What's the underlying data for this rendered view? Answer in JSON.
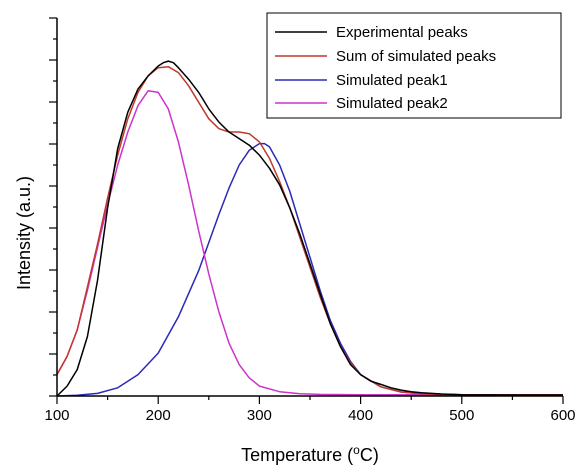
{
  "chart_data": {
    "type": "line",
    "title": "",
    "xlabel_main": "Temperature (",
    "xlabel_sup": "o",
    "xlabel_end": "C)",
    "ylabel": "Intensity (a.u.)",
    "xlim": [
      100,
      600
    ],
    "ylim": [
      0,
      100
    ],
    "x_ticks": [
      100,
      200,
      300,
      400,
      500,
      600
    ],
    "y_tick_labels_shown": false,
    "grid": false,
    "legend_position": "top-right",
    "series": [
      {
        "name": "Experimental peaks",
        "color": "#000000",
        "x": [
          100,
          110,
          120,
          130,
          140,
          150,
          160,
          170,
          180,
          190,
          200,
          205,
          210,
          215,
          220,
          230,
          240,
          250,
          260,
          270,
          280,
          290,
          300,
          310,
          320,
          330,
          340,
          350,
          360,
          370,
          380,
          390,
          400,
          410,
          420,
          430,
          440,
          450,
          460,
          480,
          500,
          550,
          600
        ],
        "y": [
          0,
          3,
          8,
          18,
          35,
          57,
          75,
          86,
          93,
          97,
          100,
          101,
          101.5,
          101,
          99.5,
          96,
          92,
          87,
          83,
          80,
          78,
          76,
          73,
          69,
          64,
          57,
          49,
          40,
          31,
          22,
          15,
          9.5,
          6.5,
          4.5,
          3.5,
          2.5,
          1.8,
          1.3,
          1,
          0.6,
          0.4,
          0.3,
          0.3
        ]
      },
      {
        "name": "Sum of simulated peaks",
        "color": "#c0392b",
        "x": [
          100,
          110,
          120,
          130,
          140,
          150,
          160,
          170,
          180,
          190,
          200,
          210,
          220,
          230,
          240,
          250,
          260,
          270,
          280,
          290,
          300,
          310,
          320,
          330,
          340,
          350,
          360,
          370,
          380,
          390,
          400,
          420,
          440,
          460,
          500,
          600
        ],
        "y": [
          6.5,
          12,
          20,
          33,
          46,
          60,
          73,
          84,
          92,
          97,
          99.5,
          99.8,
          98,
          94,
          89,
          84,
          81,
          80,
          80,
          79.5,
          77,
          72,
          65,
          57,
          48,
          39,
          30,
          22,
          15,
          10,
          6.5,
          2.8,
          1.2,
          0.7,
          0.4,
          0.4
        ]
      },
      {
        "name": "Simulated peak1",
        "color": "#2a2ab8",
        "x": [
          100,
          120,
          140,
          160,
          180,
          200,
          220,
          240,
          260,
          270,
          280,
          290,
          300,
          305,
          310,
          320,
          330,
          340,
          350,
          360,
          370,
          380,
          390,
          400,
          420,
          440,
          460,
          500,
          600
        ],
        "y": [
          0,
          0.2,
          0.8,
          2.5,
          6.5,
          13,
          24,
          38,
          55,
          63,
          70,
          74.5,
          76.5,
          76.5,
          75.5,
          70,
          62,
          52,
          42,
          32,
          23,
          16,
          10.5,
          6.5,
          2.8,
          1.2,
          0.7,
          0.4,
          0.3
        ]
      },
      {
        "name": "Simulated peak2",
        "color": "#cc33cc",
        "x": [
          100,
          110,
          120,
          130,
          140,
          150,
          160,
          170,
          180,
          190,
          200,
          210,
          220,
          230,
          240,
          250,
          260,
          270,
          280,
          290,
          300,
          320,
          340,
          360,
          400,
          500,
          600
        ],
        "y": [
          6.5,
          12,
          20,
          32,
          45,
          58,
          70,
          80,
          88,
          92.5,
          92,
          87,
          77,
          64,
          50,
          37,
          25.5,
          16,
          9.5,
          5.5,
          3,
          1.3,
          0.7,
          0.5,
          0.4,
          0.4,
          0.4
        ]
      }
    ]
  }
}
